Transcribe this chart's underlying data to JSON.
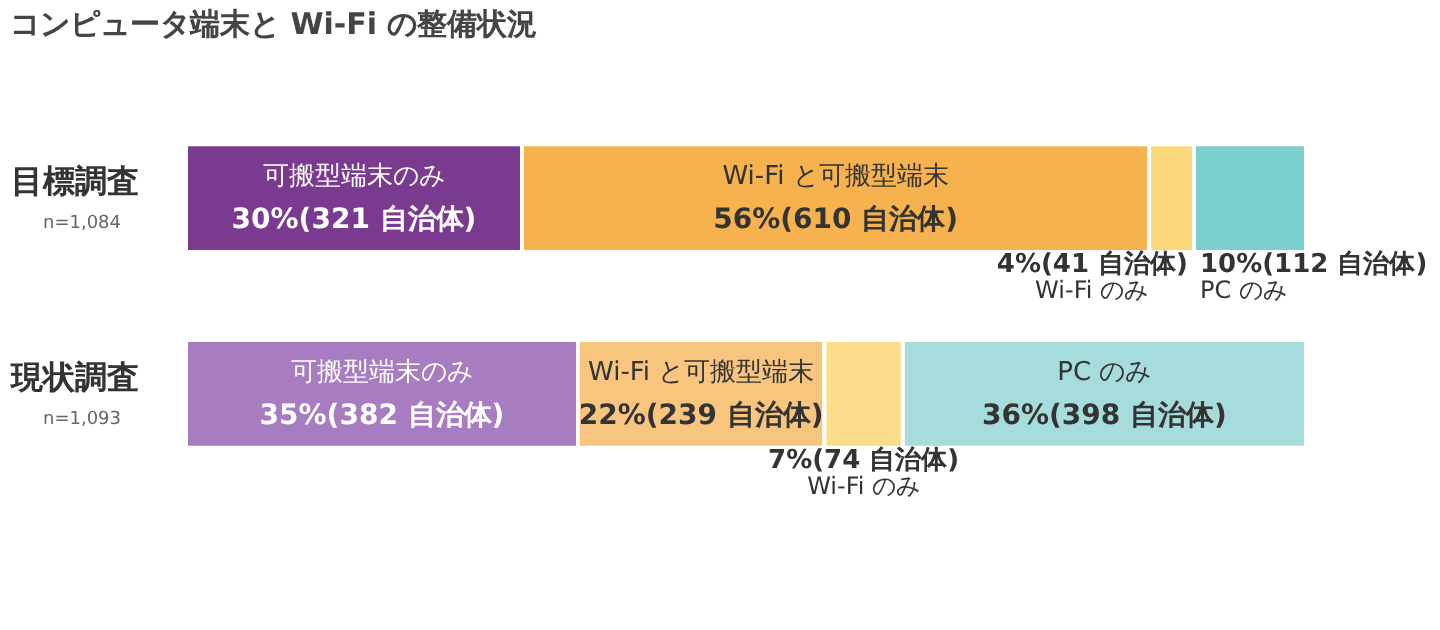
{
  "chart_data": {
    "type": "bar",
    "orientation": "horizontal",
    "stacked": true,
    "title": "コンピュータ端末と Wi-Fi の整備状況",
    "categories": [
      "目標調査",
      "現状調査"
    ],
    "annotations": [
      "n=1,084",
      "n=1,093"
    ],
    "xlim": [
      0,
      100
    ],
    "tick_labels": "y",
    "series": [
      {
        "name": "可搬型端末のみ",
        "colors": [
          "#7a3a8f",
          "#a77cc0"
        ],
        "values": [
          30,
          35
        ],
        "value_labels": [
          "30%(321 自治体)",
          "35%(382 自治体)"
        ]
      },
      {
        "name": "Wi-Fi と可搬型端末",
        "colors": [
          "#f5b24e",
          "#f8c57e"
        ],
        "values": [
          56,
          22
        ],
        "value_labels": [
          "56%(610 自治体)",
          "22%(239 自治体)"
        ]
      },
      {
        "name": "Wi-Fi のみ",
        "colors": [
          "#fbd67a",
          "#fcdc8a"
        ],
        "values": [
          4,
          7
        ],
        "value_labels": [
          "4%(41 自治体)",
          "7%(74 自治体)"
        ]
      },
      {
        "name": "PC のみ",
        "colors": [
          "#7ccfcf",
          "#a6dcdc"
        ],
        "values": [
          10,
          36
        ],
        "value_labels": [
          "10%(112 自治体)",
          "36%(398 自治体)"
        ]
      }
    ]
  }
}
